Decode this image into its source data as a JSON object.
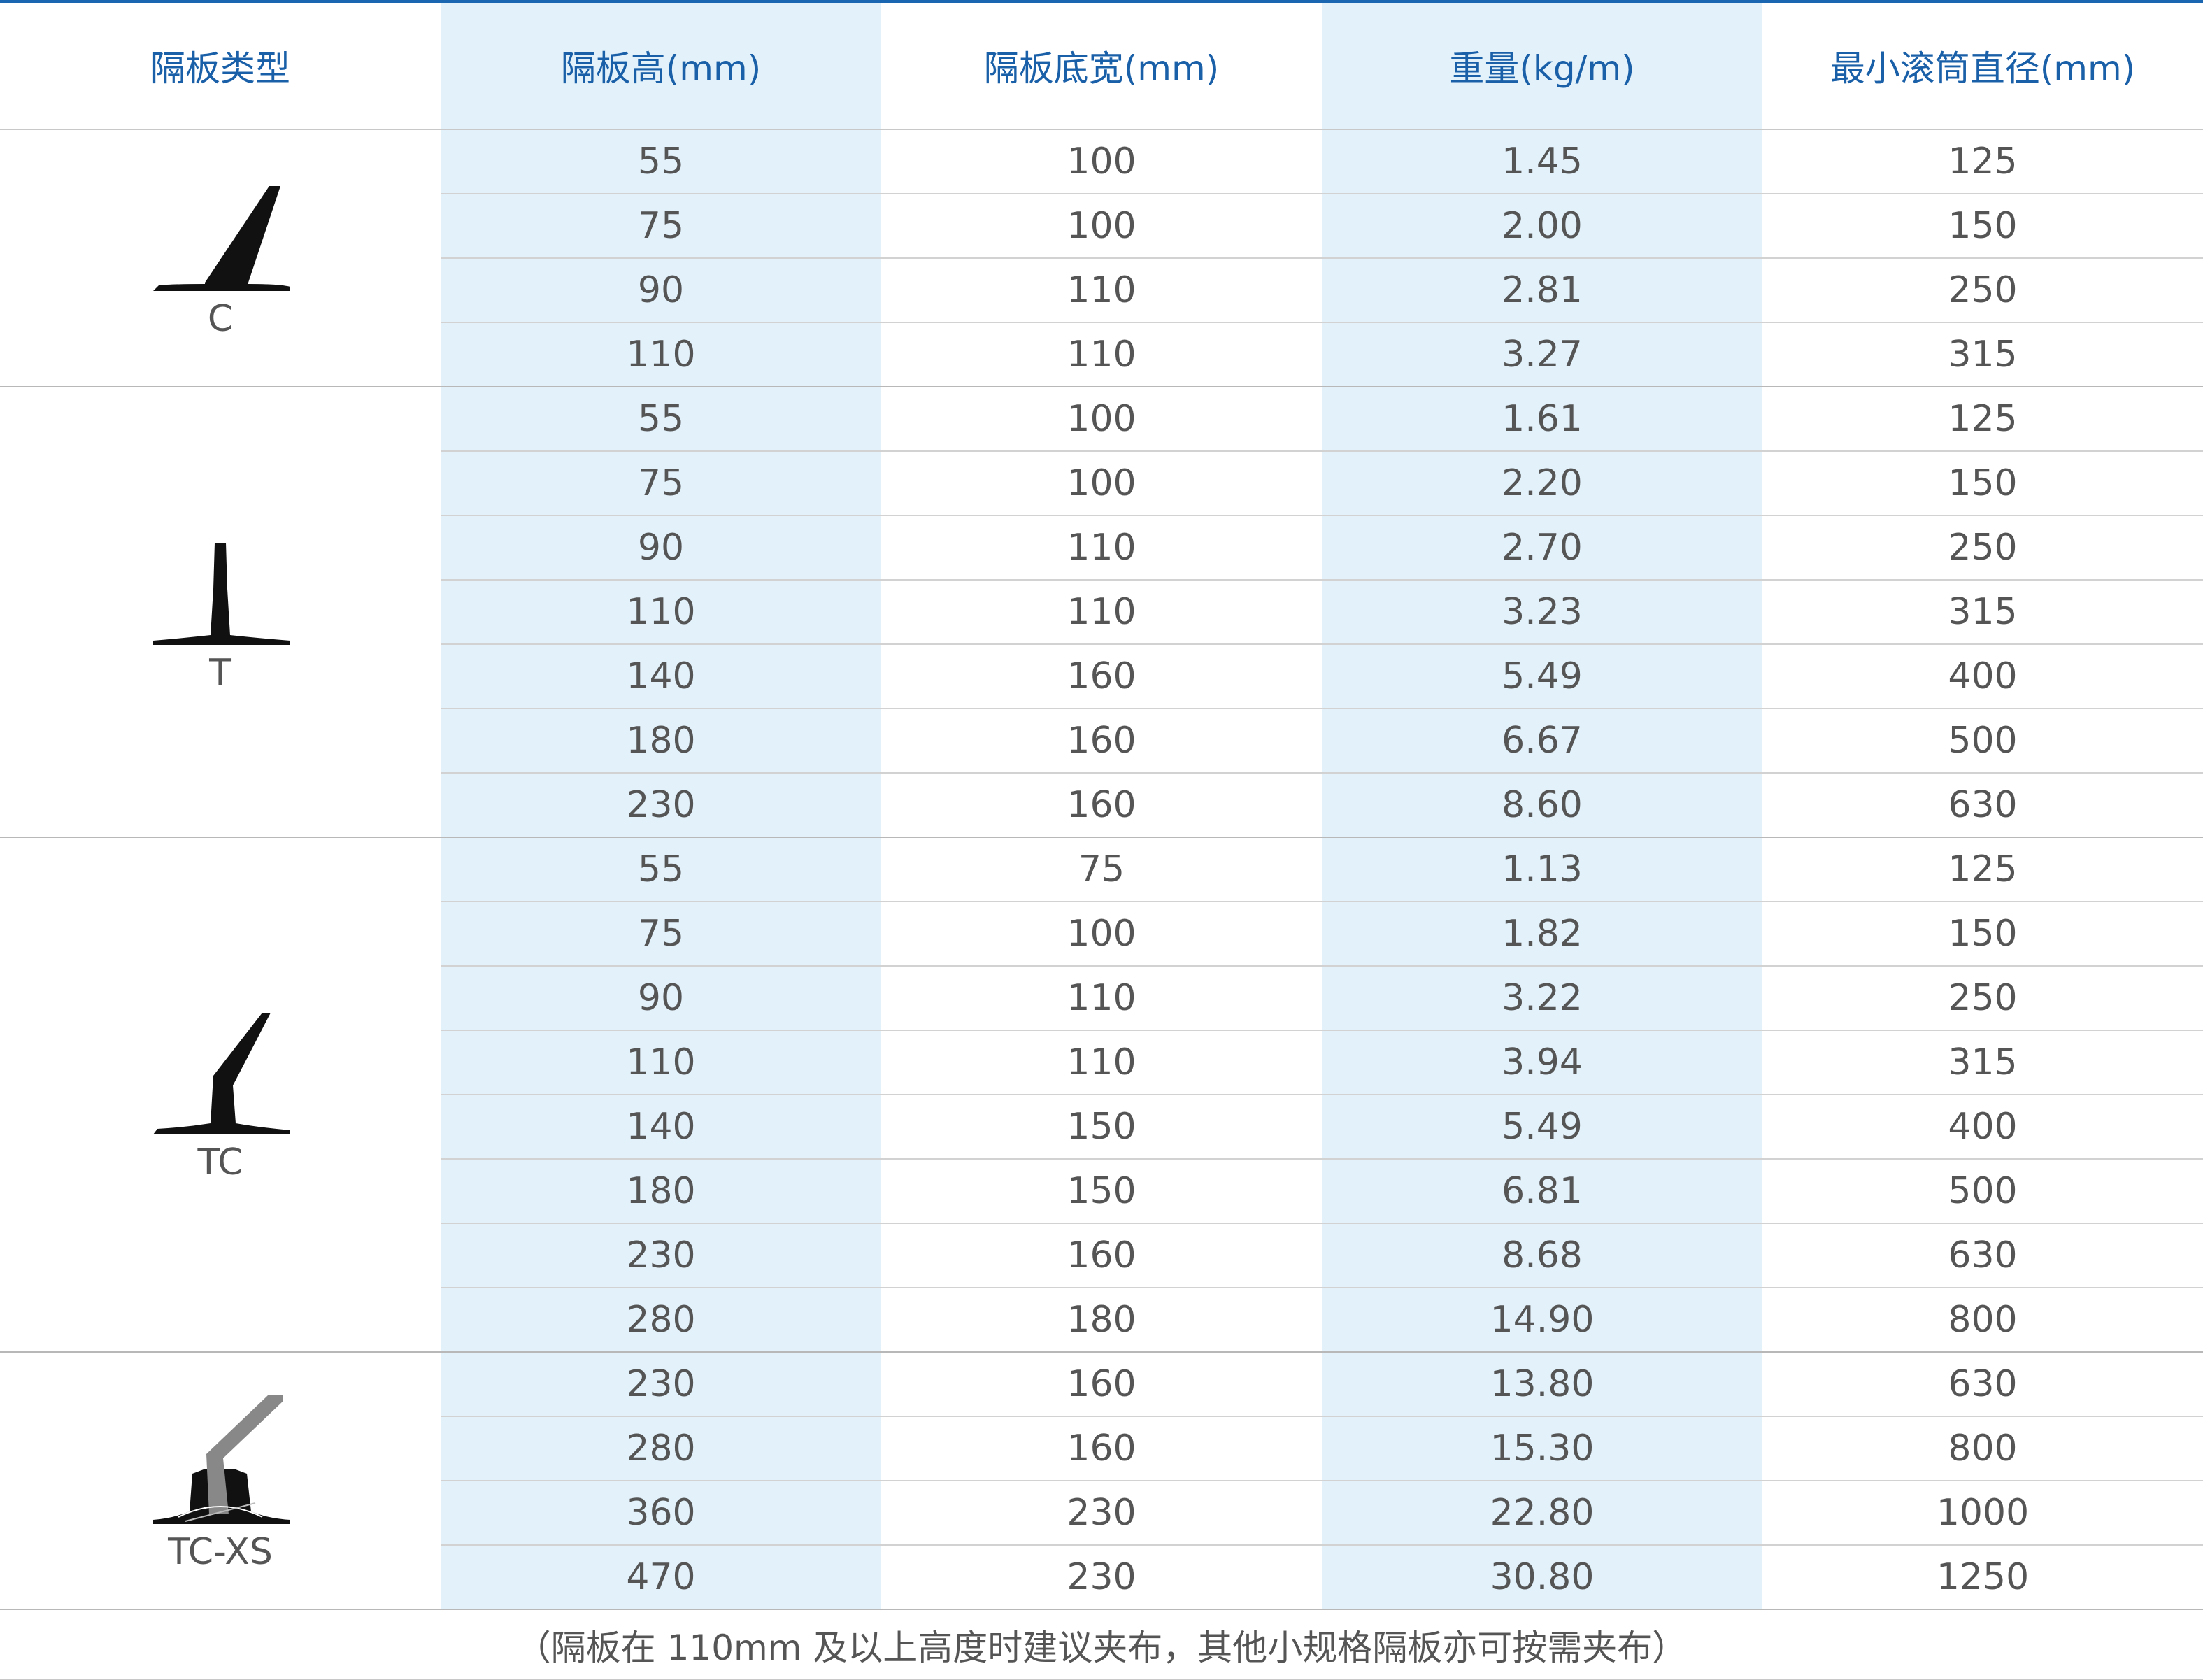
{
  "headers": {
    "type": "隔板类型",
    "height": "隔板高(mm)",
    "base_width": "隔板底宽(mm)",
    "weight": "重量(kg/m)",
    "min_drum": "最小滚筒直径(mm)"
  },
  "groups": [
    {
      "type": "C",
      "icon": "c-profile-icon",
      "rows": [
        {
          "height": "55",
          "base_width": "100",
          "weight": "1.45",
          "min_drum": "125"
        },
        {
          "height": "75",
          "base_width": "100",
          "weight": "2.00",
          "min_drum": "150"
        },
        {
          "height": "90",
          "base_width": "110",
          "weight": "2.81",
          "min_drum": "250"
        },
        {
          "height": "110",
          "base_width": "110",
          "weight": "3.27",
          "min_drum": "315"
        }
      ]
    },
    {
      "type": "T",
      "icon": "t-profile-icon",
      "rows": [
        {
          "height": "55",
          "base_width": "100",
          "weight": "1.61",
          "min_drum": "125"
        },
        {
          "height": "75",
          "base_width": "100",
          "weight": "2.20",
          "min_drum": "150"
        },
        {
          "height": "90",
          "base_width": "110",
          "weight": "2.70",
          "min_drum": "250"
        },
        {
          "height": "110",
          "base_width": "110",
          "weight": "3.23",
          "min_drum": "315"
        },
        {
          "height": "140",
          "base_width": "160",
          "weight": "5.49",
          "min_drum": "400"
        },
        {
          "height": "180",
          "base_width": "160",
          "weight": "6.67",
          "min_drum": "500"
        },
        {
          "height": "230",
          "base_width": "160",
          "weight": "8.60",
          "min_drum": "630"
        }
      ]
    },
    {
      "type": "TC",
      "icon": "tc-profile-icon",
      "rows": [
        {
          "height": "55",
          "base_width": "75",
          "weight": "1.13",
          "min_drum": "125"
        },
        {
          "height": "75",
          "base_width": "100",
          "weight": "1.82",
          "min_drum": "150"
        },
        {
          "height": "90",
          "base_width": "110",
          "weight": "3.22",
          "min_drum": "250"
        },
        {
          "height": "110",
          "base_width": "110",
          "weight": "3.94",
          "min_drum": "315"
        },
        {
          "height": "140",
          "base_width": "150",
          "weight": "5.49",
          "min_drum": "400"
        },
        {
          "height": "180",
          "base_width": "150",
          "weight": "6.81",
          "min_drum": "500"
        },
        {
          "height": "230",
          "base_width": "160",
          "weight": "8.68",
          "min_drum": "630"
        },
        {
          "height": "280",
          "base_width": "180",
          "weight": "14.90",
          "min_drum": "800"
        }
      ]
    },
    {
      "type": "TC-XS",
      "icon": "tc-xs-profile-icon",
      "rows": [
        {
          "height": "230",
          "base_width": "160",
          "weight": "13.80",
          "min_drum": "630"
        },
        {
          "height": "280",
          "base_width": "160",
          "weight": "15.30",
          "min_drum": "800"
        },
        {
          "height": "360",
          "base_width": "230",
          "weight": "22.80",
          "min_drum": "1000"
        },
        {
          "height": "470",
          "base_width": "230",
          "weight": "30.80",
          "min_drum": "1250"
        }
      ]
    }
  ],
  "footnote": "（隔板在 110mm 及以上高度时建议夹布，其他小规格隔板亦可按需夹布）",
  "colors": {
    "header_text": "#1a60a8",
    "top_rule": "#1a66b0",
    "column_shade": "#e2f1fa",
    "body_text": "#555555",
    "icon_fill": "#111111",
    "icon_gray": "#888888"
  }
}
